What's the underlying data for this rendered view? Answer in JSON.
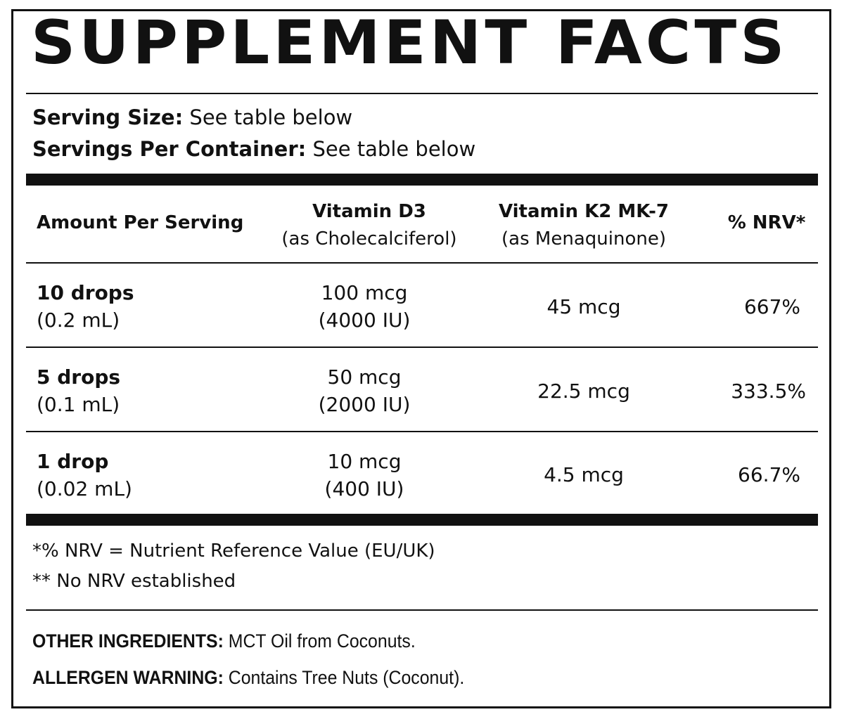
{
  "title": "SUPPLEMENT FACTS",
  "serving": {
    "size_label": "Serving Size:",
    "size_value": "See table below",
    "per_container_label": "Servings Per Container:",
    "per_container_value": "See table below"
  },
  "table": {
    "headers": [
      {
        "line1": "Amount Per Serving",
        "line2": ""
      },
      {
        "line1": "Vitamin D3",
        "line2": "(as Cholecalciferol)"
      },
      {
        "line1": "Vitamin K2 MK-7",
        "line2": "(as Menaquinone)"
      },
      {
        "line1": "% NRV*",
        "line2": ""
      }
    ],
    "rows": [
      {
        "amount": "10 drops",
        "volume": "(0.2 mL)",
        "d3": "100 mcg",
        "d3_iu": "(4000 IU)",
        "k2": "45 mcg",
        "nrv": "667%"
      },
      {
        "amount": "5 drops",
        "volume": "(0.1 mL)",
        "d3": "50 mcg",
        "d3_iu": "(2000 IU)",
        "k2": "22.5 mcg",
        "nrv": "333.5%"
      },
      {
        "amount": "1 drop",
        "volume": "(0.02 mL)",
        "d3": "10 mcg",
        "d3_iu": "(400 IU)",
        "k2": "4.5 mcg",
        "nrv": "66.7%"
      }
    ]
  },
  "footnotes": [
    "*% NRV = Nutrient Reference Value (EU/UK)",
    "** No NRV established"
  ],
  "other_ingredients": {
    "label": "OTHER INGREDIENTS:",
    "value": "MCT Oil from Coconuts."
  },
  "allergen_warning": {
    "label": "ALLERGEN WARNING:",
    "value": "Contains Tree Nuts (Coconut)."
  }
}
